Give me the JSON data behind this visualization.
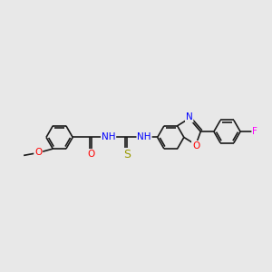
{
  "bg_color": "#e8e8e8",
  "bond_color": "#1a1a1a",
  "bond_width": 1.2,
  "figsize": [
    3.0,
    3.0
  ],
  "dpi": 100,
  "atom_colors": {
    "N": "#0000ff",
    "O": "#ff0000",
    "S": "#999900",
    "F": "#ff00ff",
    "C": "#1a1a1a"
  },
  "font_size": 7.5,
  "title": ""
}
